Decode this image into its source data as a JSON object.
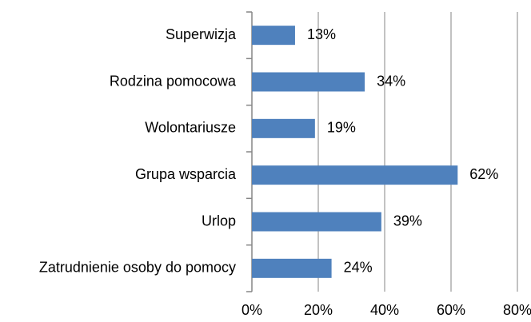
{
  "chart_data": {
    "type": "barh",
    "categories": [
      "Superwizja",
      "Rodzina pomocowa",
      "Wolontariusze",
      "Grupa wsparcia",
      "Urlop",
      "Zatrudnienie osoby do pomocy"
    ],
    "values": [
      13,
      34,
      19,
      62,
      39,
      24
    ],
    "value_labels": [
      "13%",
      "34%",
      "19%",
      "62%",
      "39%",
      "24%"
    ],
    "color": "#4f81bd",
    "xlim": [
      0,
      80
    ],
    "xticks": [
      {
        "value": 0,
        "label": "0%"
      },
      {
        "value": 20,
        "label": "20%"
      },
      {
        "value": 40,
        "label": "40%"
      },
      {
        "value": 60,
        "label": "60%"
      },
      {
        "value": 80,
        "label": "80%"
      }
    ],
    "grid": true
  }
}
